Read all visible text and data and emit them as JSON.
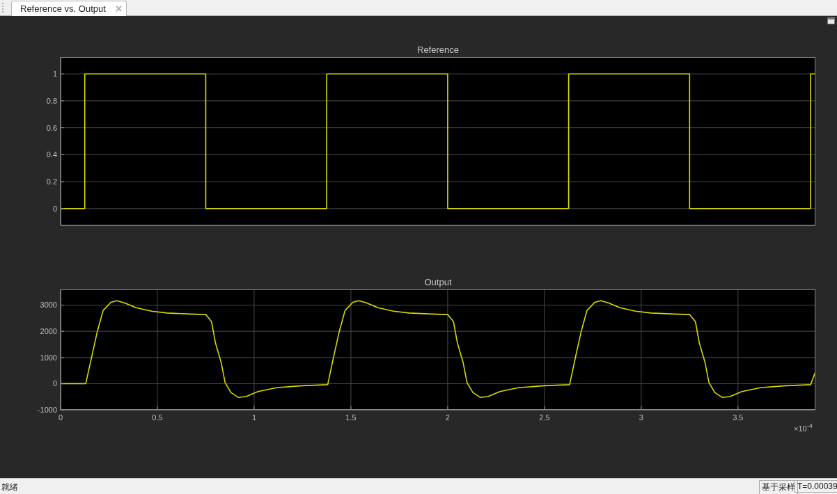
{
  "chart_data": [
    {
      "type": "step",
      "title": "Reference",
      "annotations": [
        "Reference vs. Output"
      ],
      "xlim": [
        0,
        3.9
      ],
      "xticks": [
        0,
        0.5,
        1,
        1.5,
        2,
        2.5,
        3,
        3.5
      ],
      "ylim": [
        -0.125,
        1.125
      ],
      "yticks": [
        0,
        0.2,
        0.4,
        0.6,
        0.8,
        1
      ],
      "grid": true,
      "tick_labels": "y",
      "x": [
        0,
        0.125,
        0.75,
        1.375,
        2,
        2.625,
        3.25,
        3.875,
        3.9
      ],
      "series": [
        {
          "color": "#d9d900",
          "values": [
            0,
            1,
            0,
            1,
            0,
            1,
            0,
            1,
            1
          ]
        }
      ]
    },
    {
      "type": "line",
      "title": "Output",
      "annotations": [
        "×10$^{-4}$",
        "就绪",
        "基于采样",
        "T=0.00039"
      ],
      "xlim": [
        0,
        3.9
      ],
      "xticks": [
        0,
        0.5,
        1,
        1.5,
        2,
        2.5,
        3,
        3.5
      ],
      "ylim": [
        -1000,
        3600
      ],
      "yticks": [
        -1000,
        0,
        1000,
        2000,
        3000
      ],
      "grid": true,
      "x": [
        0,
        0.13,
        0.16,
        0.19,
        0.22,
        0.26,
        0.29,
        0.33,
        0.39,
        0.47,
        0.55,
        0.67,
        0.75,
        0.78,
        0.8,
        0.83,
        0.85,
        0.88,
        0.92,
        0.96,
        1.02,
        1.12,
        1.25,
        1.38,
        1.41,
        1.44,
        1.47,
        1.51,
        1.54,
        1.58,
        1.64,
        1.72,
        1.8,
        1.92,
        2.0,
        2.03,
        2.05,
        2.08,
        2.1,
        2.13,
        2.17,
        2.21,
        2.27,
        2.37,
        2.5,
        2.63,
        2.66,
        2.69,
        2.72,
        2.76,
        2.79,
        2.83,
        2.89,
        2.97,
        3.05,
        3.17,
        3.25,
        3.28,
        3.3,
        3.33,
        3.35,
        3.38,
        3.42,
        3.46,
        3.52,
        3.62,
        3.75,
        3.875,
        3.9
      ],
      "series": [
        {
          "color": "#d9d900",
          "values": [
            0,
            0,
            1000,
            2000,
            2800,
            3110,
            3170,
            3090,
            2900,
            2770,
            2700,
            2660,
            2640,
            2370,
            1560,
            800,
            40,
            -340,
            -530,
            -490,
            -300,
            -150,
            -80,
            -40,
            1000,
            2000,
            2800,
            3110,
            3170,
            3090,
            2900,
            2770,
            2700,
            2660,
            2640,
            2370,
            1560,
            800,
            40,
            -340,
            -530,
            -490,
            -300,
            -150,
            -80,
            -40,
            1000,
            2000,
            2800,
            3110,
            3170,
            3090,
            2900,
            2770,
            2700,
            2660,
            2640,
            2370,
            1560,
            800,
            40,
            -340,
            -530,
            -490,
            -300,
            -150,
            -80,
            -40,
            450
          ]
        }
      ]
    }
  ]
}
